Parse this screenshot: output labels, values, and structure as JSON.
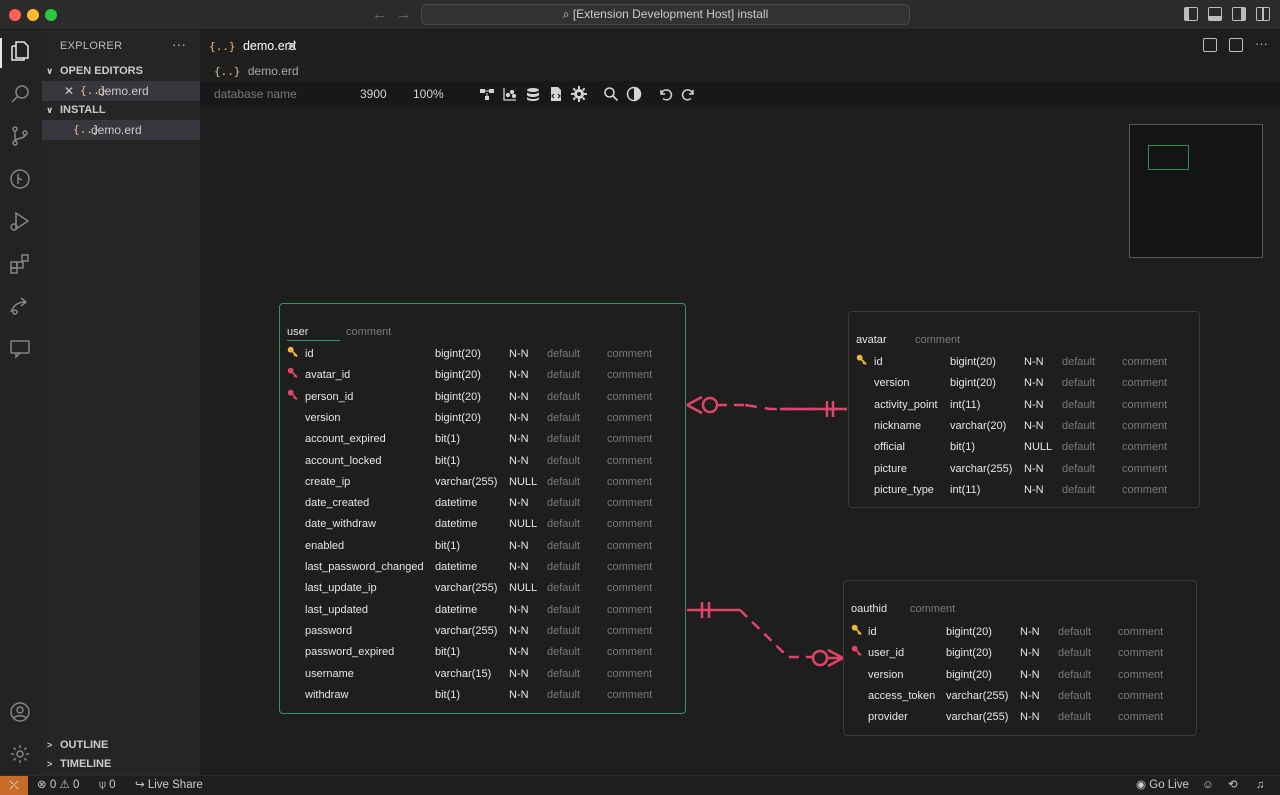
{
  "titlebar": {
    "command_center": "[Extension Development Host] install"
  },
  "sidebar": {
    "title": "EXPLORER",
    "open_editors_label": "OPEN EDITORS",
    "open_editor_file": "demo.erd",
    "folder_label": "INSTALL",
    "folder_file": "demo.erd",
    "outline_label": "OUTLINE",
    "timeline_label": "TIMELINE"
  },
  "editor": {
    "tab_label": "demo.erd",
    "breadcrumb_file": "demo.erd",
    "curly": "{..}"
  },
  "erd_toolbar": {
    "database_placeholder": "database name",
    "canvas_width": "3900",
    "zoom": "100%"
  },
  "tables": [
    {
      "name": "user",
      "comment": "comment",
      "columns": [
        {
          "key": "pk",
          "name": "id",
          "type": "bigint(20)",
          "null": "N-N",
          "default": "default",
          "comment": "comment"
        },
        {
          "key": "fk",
          "name": "avatar_id",
          "type": "bigint(20)",
          "null": "N-N",
          "default": "default",
          "comment": "comment"
        },
        {
          "key": "fk",
          "name": "person_id",
          "type": "bigint(20)",
          "null": "N-N",
          "default": "default",
          "comment": "comment"
        },
        {
          "key": "",
          "name": "version",
          "type": "bigint(20)",
          "null": "N-N",
          "default": "default",
          "comment": "comment"
        },
        {
          "key": "",
          "name": "account_expired",
          "type": "bit(1)",
          "null": "N-N",
          "default": "default",
          "comment": "comment"
        },
        {
          "key": "",
          "name": "account_locked",
          "type": "bit(1)",
          "null": "N-N",
          "default": "default",
          "comment": "comment"
        },
        {
          "key": "",
          "name": "create_ip",
          "type": "varchar(255)",
          "null": "NULL",
          "default": "default",
          "comment": "comment"
        },
        {
          "key": "",
          "name": "date_created",
          "type": "datetime",
          "null": "N-N",
          "default": "default",
          "comment": "comment"
        },
        {
          "key": "",
          "name": "date_withdraw",
          "type": "datetime",
          "null": "NULL",
          "default": "default",
          "comment": "comment"
        },
        {
          "key": "",
          "name": "enabled",
          "type": "bit(1)",
          "null": "N-N",
          "default": "default",
          "comment": "comment"
        },
        {
          "key": "",
          "name": "last_password_changed",
          "type": "datetime",
          "null": "N-N",
          "default": "default",
          "comment": "comment"
        },
        {
          "key": "",
          "name": "last_update_ip",
          "type": "varchar(255)",
          "null": "NULL",
          "default": "default",
          "comment": "comment"
        },
        {
          "key": "",
          "name": "last_updated",
          "type": "datetime",
          "null": "N-N",
          "default": "default",
          "comment": "comment"
        },
        {
          "key": "",
          "name": "password",
          "type": "varchar(255)",
          "null": "N-N",
          "default": "default",
          "comment": "comment"
        },
        {
          "key": "",
          "name": "password_expired",
          "type": "bit(1)",
          "null": "N-N",
          "default": "default",
          "comment": "comment"
        },
        {
          "key": "",
          "name": "username",
          "type": "varchar(15)",
          "null": "N-N",
          "default": "default",
          "comment": "comment"
        },
        {
          "key": "",
          "name": "withdraw",
          "type": "bit(1)",
          "null": "N-N",
          "default": "default",
          "comment": "comment"
        }
      ]
    },
    {
      "name": "avatar",
      "comment": "comment",
      "columns": [
        {
          "key": "pk",
          "name": "id",
          "type": "bigint(20)",
          "null": "N-N",
          "default": "default",
          "comment": "comment"
        },
        {
          "key": "",
          "name": "version",
          "type": "bigint(20)",
          "null": "N-N",
          "default": "default",
          "comment": "comment"
        },
        {
          "key": "",
          "name": "activity_point",
          "type": "int(11)",
          "null": "N-N",
          "default": "default",
          "comment": "comment"
        },
        {
          "key": "",
          "name": "nickname",
          "type": "varchar(20)",
          "null": "N-N",
          "default": "default",
          "comment": "comment"
        },
        {
          "key": "",
          "name": "official",
          "type": "bit(1)",
          "null": "NULL",
          "default": "default",
          "comment": "comment"
        },
        {
          "key": "",
          "name": "picture",
          "type": "varchar(255)",
          "null": "N-N",
          "default": "default",
          "comment": "comment"
        },
        {
          "key": "",
          "name": "picture_type",
          "type": "int(11)",
          "null": "N-N",
          "default": "default",
          "comment": "comment"
        }
      ]
    },
    {
      "name": "oauthid",
      "comment": "comment",
      "columns": [
        {
          "key": "pk",
          "name": "id",
          "type": "bigint(20)",
          "null": "N-N",
          "default": "default",
          "comment": "comment"
        },
        {
          "key": "fk",
          "name": "user_id",
          "type": "bigint(20)",
          "null": "N-N",
          "default": "default",
          "comment": "comment"
        },
        {
          "key": "",
          "name": "version",
          "type": "bigint(20)",
          "null": "N-N",
          "default": "default",
          "comment": "comment"
        },
        {
          "key": "",
          "name": "access_token",
          "type": "varchar(255)",
          "null": "N-N",
          "default": "default",
          "comment": "comment"
        },
        {
          "key": "",
          "name": "provider",
          "type": "varchar(255)",
          "null": "N-N",
          "default": "default",
          "comment": "comment"
        }
      ]
    }
  ],
  "statusbar": {
    "errors": "0",
    "warnings": "0",
    "ports": "0",
    "live_share": "Live Share",
    "go_live": "Go Live"
  },
  "colors": {
    "relation": "#e0446a",
    "selected_border": "#3f8f66",
    "pk_key": "#f0b93a",
    "fk_key": "#e0446a"
  }
}
